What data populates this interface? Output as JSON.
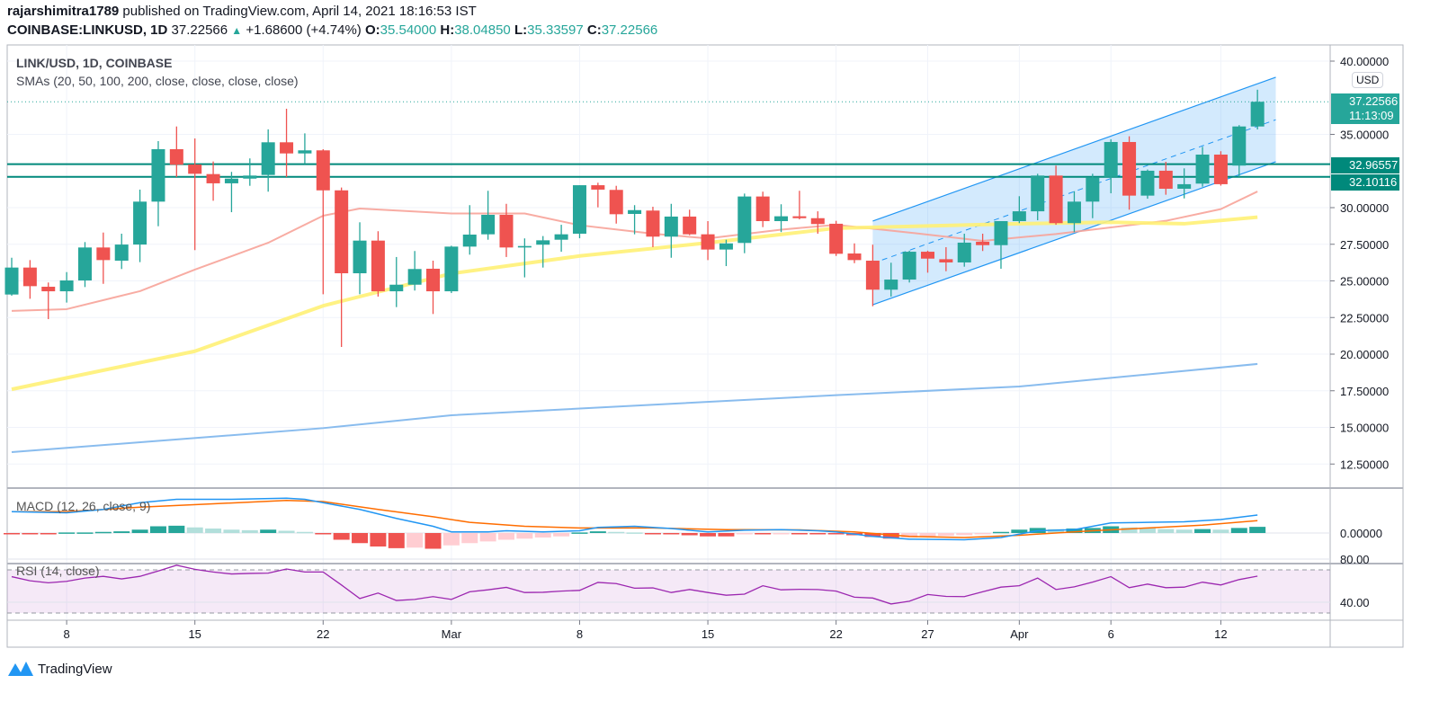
{
  "header": {
    "author": "rajarshimitra1789",
    "published": "published on TradingView.com, April 14, 2021 18:16:53 IST",
    "symbol": "COINBASE:LINKUSD, 1D",
    "last": "37.22566",
    "change": "+1.68600 (+4.74%)",
    "o_label": "O:",
    "o": "35.54000",
    "h_label": "H:",
    "h": "38.04850",
    "l_label": "L:",
    "l": "35.33597",
    "c_label": "C:",
    "c": "37.22566"
  },
  "legend": {
    "main": "LINK/USD, 1D, COINBASE",
    "sma": "SMAs (20, 50, 100, 200, close, close, close, close)",
    "macd": "MACD (12, 26, close, 9)",
    "rsi": "RSI (14, close)"
  },
  "badges": {
    "currency": "USD",
    "last_price": "37.22566",
    "countdown": "11:13:09",
    "level1": "32.96557",
    "level2": "32.10116"
  },
  "logo_text": "TradingView",
  "colors": {
    "up": "#26a69a",
    "down": "#ef5350",
    "sma20": "#f7a399",
    "sma50": "#fff176",
    "sma200": "#7cb5ec",
    "macd": "#2196f3",
    "signal": "#ff6d00",
    "rsi": "#9c27b0",
    "channel": "#2196f3",
    "level": "#00897b"
  },
  "chart_data": {
    "type": "candlestick",
    "title": "LINK/USD, 1D, COINBASE",
    "ylim": [
      10.5,
      40.5
    ],
    "y_ticks": [
      "40.00000",
      "35.00000",
      "30.00000",
      "27.50000",
      "25.00000",
      "22.50000",
      "20.00000",
      "17.50000",
      "15.00000",
      "12.50000"
    ],
    "y_tick_values": [
      40,
      35,
      30,
      27.5,
      25,
      22.5,
      20,
      17.5,
      15,
      12.5
    ],
    "x_ticks": [
      {
        "date": "2021-02-08",
        "label": "8"
      },
      {
        "date": "2021-02-15",
        "label": "15"
      },
      {
        "date": "2021-02-22",
        "label": "22"
      },
      {
        "date": "2021-03-01",
        "label": "Mar"
      },
      {
        "date": "2021-03-08",
        "label": "8"
      },
      {
        "date": "2021-03-15",
        "label": "15"
      },
      {
        "date": "2021-03-22",
        "label": "22"
      },
      {
        "date": "2021-03-27",
        "label": "27"
      },
      {
        "date": "2021-04-01",
        "label": "Apr"
      },
      {
        "date": "2021-04-06",
        "label": "6"
      },
      {
        "date": "2021-04-12",
        "label": "12"
      }
    ],
    "candles": [
      [
        "2021-02-05",
        24.07,
        26.58,
        23.99,
        25.91
      ],
      [
        "2021-02-06",
        25.91,
        26.42,
        23.78,
        24.64
      ],
      [
        "2021-02-07",
        24.6,
        24.89,
        22.39,
        24.29
      ],
      [
        "2021-02-08",
        24.29,
        25.6,
        23.52,
        25.03
      ],
      [
        "2021-02-09",
        25.03,
        27.65,
        24.58,
        27.28
      ],
      [
        "2021-02-10",
        27.28,
        28.3,
        24.8,
        26.42
      ],
      [
        "2021-02-11",
        26.38,
        28.22,
        25.81,
        27.48
      ],
      [
        "2021-02-12",
        27.48,
        31.23,
        26.28,
        30.41
      ],
      [
        "2021-02-13",
        30.41,
        34.54,
        28.73,
        33.99
      ],
      [
        "2021-02-14",
        33.99,
        35.54,
        32.09,
        32.93
      ],
      [
        "2021-02-15",
        32.94,
        34.72,
        27.1,
        32.31
      ],
      [
        "2021-02-16",
        32.29,
        33.15,
        30.47,
        31.66
      ],
      [
        "2021-02-17",
        31.66,
        32.44,
        29.69,
        31.98
      ],
      [
        "2021-02-18",
        31.98,
        33.36,
        31.49,
        32.19
      ],
      [
        "2021-02-19",
        32.23,
        35.34,
        31.09,
        34.46
      ],
      [
        "2021-02-20",
        34.46,
        36.75,
        32.09,
        33.7
      ],
      [
        "2021-02-21",
        33.7,
        35.07,
        32.99,
        33.91
      ],
      [
        "2021-02-22",
        33.91,
        33.99,
        24.09,
        31.18
      ],
      [
        "2021-02-23",
        31.18,
        31.37,
        20.49,
        25.52
      ],
      [
        "2021-02-24",
        25.52,
        29.0,
        24.09,
        27.75
      ],
      [
        "2021-02-25",
        27.75,
        28.39,
        23.93,
        24.29
      ],
      [
        "2021-02-26",
        24.29,
        26.63,
        23.21,
        24.74
      ],
      [
        "2021-02-27",
        24.74,
        27.04,
        24.34,
        25.81
      ],
      [
        "2021-02-28",
        25.83,
        26.38,
        22.74,
        24.29
      ],
      [
        "2021-03-01",
        24.29,
        27.4,
        24.17,
        27.34
      ],
      [
        "2021-03-02",
        27.34,
        30.17,
        26.79,
        28.16
      ],
      [
        "2021-03-03",
        28.18,
        31.15,
        27.81,
        29.51
      ],
      [
        "2021-03-04",
        29.51,
        30.26,
        26.63,
        27.28
      ],
      [
        "2021-03-05",
        27.28,
        27.9,
        25.24,
        27.38
      ],
      [
        "2021-03-06",
        27.47,
        28.06,
        25.91,
        27.77
      ],
      [
        "2021-03-07",
        27.81,
        28.83,
        26.99,
        28.18
      ],
      [
        "2021-03-08",
        28.22,
        31.53,
        27.91,
        31.53
      ],
      [
        "2021-03-09",
        31.53,
        31.7,
        30.02,
        31.23
      ],
      [
        "2021-03-10",
        31.21,
        31.49,
        28.91,
        29.55
      ],
      [
        "2021-03-11",
        29.57,
        30.17,
        28.18,
        29.83
      ],
      [
        "2021-03-12",
        29.8,
        30.06,
        27.3,
        28.02
      ],
      [
        "2021-03-13",
        28.02,
        30.26,
        26.58,
        29.39
      ],
      [
        "2021-03-14",
        29.39,
        29.86,
        28.12,
        28.18
      ],
      [
        "2021-03-15",
        28.18,
        29.08,
        26.42,
        27.14
      ],
      [
        "2021-03-16",
        27.14,
        27.81,
        26.01,
        27.56
      ],
      [
        "2021-03-17",
        27.59,
        30.96,
        26.89,
        30.76
      ],
      [
        "2021-03-18",
        30.76,
        31.09,
        28.67,
        29.08
      ],
      [
        "2021-03-19",
        29.08,
        30.23,
        28.33,
        29.41
      ],
      [
        "2021-03-20",
        29.41,
        31.15,
        29.2,
        29.28
      ],
      [
        "2021-03-21",
        29.28,
        29.75,
        28.22,
        28.88
      ],
      [
        "2021-03-22",
        28.9,
        29.1,
        26.7,
        26.85
      ],
      [
        "2021-03-23",
        26.87,
        27.56,
        26.21,
        26.42
      ],
      [
        "2021-03-24",
        26.38,
        27.47,
        23.27,
        24.4
      ],
      [
        "2021-03-25",
        24.4,
        26.24,
        23.93,
        25.09
      ],
      [
        "2021-03-26",
        25.09,
        27.06,
        24.89,
        26.99
      ],
      [
        "2021-03-27",
        26.99,
        27.06,
        25.56,
        26.52
      ],
      [
        "2021-03-28",
        26.48,
        27.3,
        25.66,
        26.26
      ],
      [
        "2021-03-29",
        26.26,
        28.22,
        25.97,
        27.61
      ],
      [
        "2021-03-30",
        27.67,
        28.22,
        27.04,
        27.44
      ],
      [
        "2021-03-31",
        27.44,
        29.08,
        25.83,
        29.08
      ],
      [
        "2021-04-01",
        29.08,
        30.78,
        28.94,
        29.75
      ],
      [
        "2021-04-02",
        29.75,
        32.31,
        29.14,
        32.19
      ],
      [
        "2021-04-03",
        32.19,
        32.87,
        28.83,
        28.94
      ],
      [
        "2021-04-04",
        28.94,
        31.12,
        28.33,
        30.41
      ],
      [
        "2021-04-05",
        30.41,
        32.31,
        29.28,
        32.07
      ],
      [
        "2021-04-06",
        32.1,
        34.66,
        30.98,
        34.48
      ],
      [
        "2021-04-07",
        34.48,
        34.87,
        29.86,
        30.82
      ],
      [
        "2021-04-08",
        30.82,
        32.6,
        30.61,
        32.52
      ],
      [
        "2021-04-09",
        32.52,
        33.13,
        30.88,
        31.29
      ],
      [
        "2021-04-10",
        31.29,
        32.68,
        30.63,
        31.6
      ],
      [
        "2021-04-11",
        31.64,
        34.15,
        31.43,
        33.62
      ],
      [
        "2021-04-12",
        33.62,
        33.85,
        31.5,
        31.6
      ],
      [
        "2021-04-13",
        32.87,
        35.63,
        32.1,
        35.54
      ],
      [
        "2021-04-14",
        35.54,
        38.0485,
        35.33597,
        37.22566
      ]
    ],
    "sma": [
      {
        "name": "SMA 20",
        "color_key": "sma20",
        "points": [
          [
            "2021-02-05",
            22.95
          ],
          [
            "2021-02-08",
            23.07
          ],
          [
            "2021-02-12",
            24.3
          ],
          [
            "2021-02-15",
            25.77
          ],
          [
            "2021-02-19",
            27.6
          ],
          [
            "2021-02-22",
            29.45
          ],
          [
            "2021-02-24",
            29.94
          ],
          [
            "2021-03-01",
            29.6
          ],
          [
            "2021-03-05",
            29.6
          ],
          [
            "2021-03-08",
            28.8
          ],
          [
            "2021-03-12",
            28.22
          ],
          [
            "2021-03-15",
            27.9
          ],
          [
            "2021-03-19",
            28.5
          ],
          [
            "2021-03-22",
            28.83
          ],
          [
            "2021-03-26",
            28.3
          ],
          [
            "2021-03-30",
            27.73
          ],
          [
            "2021-04-03",
            28.2
          ],
          [
            "2021-04-06",
            28.65
          ],
          [
            "2021-04-09",
            29.1
          ],
          [
            "2021-04-12",
            29.9
          ],
          [
            "2021-04-14",
            31.1
          ]
        ]
      },
      {
        "name": "SMA 50",
        "color_key": "sma50",
        "points": [
          [
            "2021-02-05",
            17.6
          ],
          [
            "2021-02-15",
            20.2
          ],
          [
            "2021-02-22",
            23.3
          ],
          [
            "2021-03-01",
            25.5
          ],
          [
            "2021-03-08",
            26.7
          ],
          [
            "2021-03-15",
            27.6
          ],
          [
            "2021-03-22",
            28.6
          ],
          [
            "2021-04-01",
            28.9
          ],
          [
            "2021-04-06",
            29.0
          ],
          [
            "2021-04-10",
            28.9
          ],
          [
            "2021-04-14",
            29.35
          ]
        ]
      },
      {
        "name": "SMA 200",
        "color_key": "sma200",
        "points": [
          [
            "2021-02-05",
            13.31
          ],
          [
            "2021-02-22",
            14.95
          ],
          [
            "2021-03-01",
            15.83
          ],
          [
            "2021-03-22",
            17.2
          ],
          [
            "2021-04-01",
            17.79
          ],
          [
            "2021-04-14",
            19.33
          ]
        ]
      }
    ],
    "horizontal_levels": [
      32.96557,
      32.10116
    ],
    "last_price": 37.22566,
    "channel": {
      "upper": [
        [
          "2021-03-24",
          29.08
        ],
        [
          "2021-04-15",
          38.9
        ]
      ],
      "lower": [
        [
          "2021-03-24",
          23.37
        ],
        [
          "2021-04-15",
          33.13
        ]
      ],
      "middle": [
        [
          "2021-03-24",
          26.2
        ],
        [
          "2021-04-15",
          36.0
        ]
      ]
    },
    "macd": {
      "zero_label": "0.00000",
      "macd_line": [
        [
          "2021-02-05",
          1.9
        ],
        [
          "2021-02-08",
          1.8
        ],
        [
          "2021-02-10",
          2.1
        ],
        [
          "2021-02-12",
          2.7
        ],
        [
          "2021-02-14",
          3.0
        ],
        [
          "2021-02-17",
          3.0
        ],
        [
          "2021-02-20",
          3.1
        ],
        [
          "2021-02-21",
          3.0
        ],
        [
          "2021-02-22",
          2.7
        ],
        [
          "2021-02-24",
          2.1
        ],
        [
          "2021-02-26",
          1.3
        ],
        [
          "2021-02-28",
          0.6
        ],
        [
          "2021-03-01",
          0.1
        ],
        [
          "2021-03-03",
          0.1
        ],
        [
          "2021-03-04",
          0.2
        ],
        [
          "2021-03-06",
          0.1
        ],
        [
          "2021-03-08",
          0.2
        ],
        [
          "2021-03-09",
          0.5
        ],
        [
          "2021-03-11",
          0.6
        ],
        [
          "2021-03-13",
          0.4
        ],
        [
          "2021-03-15",
          0.1
        ],
        [
          "2021-03-17",
          0.25
        ],
        [
          "2021-03-19",
          0.3
        ],
        [
          "2021-03-21",
          0.2
        ],
        [
          "2021-03-22",
          0.1
        ],
        [
          "2021-03-24",
          -0.3
        ],
        [
          "2021-03-26",
          -0.55
        ],
        [
          "2021-03-29",
          -0.6
        ],
        [
          "2021-03-31",
          -0.4
        ],
        [
          "2021-04-02",
          0.2
        ],
        [
          "2021-04-04",
          0.3
        ],
        [
          "2021-04-06",
          0.9
        ],
        [
          "2021-04-08",
          0.95
        ],
        [
          "2021-04-10",
          1.0
        ],
        [
          "2021-04-12",
          1.2
        ],
        [
          "2021-04-14",
          1.6
        ]
      ],
      "signal_line": [
        [
          "2021-02-05",
          1.9
        ],
        [
          "2021-02-08",
          1.9
        ],
        [
          "2021-02-12",
          2.3
        ],
        [
          "2021-02-16",
          2.6
        ],
        [
          "2021-02-20",
          2.9
        ],
        [
          "2021-02-22",
          2.8
        ],
        [
          "2021-02-25",
          2.1
        ],
        [
          "2021-02-28",
          1.45
        ],
        [
          "2021-03-02",
          0.95
        ],
        [
          "2021-03-05",
          0.6
        ],
        [
          "2021-03-08",
          0.45
        ],
        [
          "2021-03-12",
          0.45
        ],
        [
          "2021-03-16",
          0.3
        ],
        [
          "2021-03-20",
          0.28
        ],
        [
          "2021-03-23",
          0.1
        ],
        [
          "2021-03-26",
          -0.3
        ],
        [
          "2021-03-29",
          -0.4
        ],
        [
          "2021-04-01",
          -0.2
        ],
        [
          "2021-04-05",
          0.2
        ],
        [
          "2021-04-08",
          0.45
        ],
        [
          "2021-04-11",
          0.7
        ],
        [
          "2021-04-14",
          1.1
        ]
      ],
      "histogram": [
        -0.05,
        -0.1,
        -0.1,
        0.05,
        0.05,
        0.1,
        0.15,
        0.3,
        0.6,
        0.65,
        0.5,
        0.4,
        0.3,
        0.25,
        0.3,
        0.2,
        0.1,
        -0.1,
        -0.6,
        -0.9,
        -1.2,
        -1.35,
        -1.3,
        -1.4,
        -1.1,
        -0.9,
        -0.75,
        -0.6,
        -0.5,
        -0.4,
        -0.3,
        0.05,
        0.15,
        0.1,
        0.05,
        -0.05,
        -0.1,
        -0.2,
        -0.3,
        -0.3,
        -0.1,
        -0.1,
        -0.05,
        -0.05,
        -0.05,
        -0.1,
        -0.2,
        -0.35,
        -0.5,
        -0.4,
        -0.3,
        -0.25,
        -0.2,
        -0.1,
        0.1,
        0.3,
        0.45,
        0.35,
        0.4,
        0.45,
        0.6,
        0.5,
        0.45,
        0.35,
        0.3,
        0.35,
        0.3,
        0.45,
        0.55
      ]
    },
    "rsi": {
      "ticks": [
        "80.00",
        "40.00"
      ],
      "tick_values": [
        80,
        40
      ],
      "bands": [
        70,
        30
      ],
      "values": [
        63.7,
        59.9,
        58,
        59.4,
        62.4,
        64,
        61.6,
        64,
        69,
        74.3,
        70.5,
        68,
        66.2,
        66.7,
        67,
        70.8,
        68,
        68,
        56,
        43.4,
        48.5,
        41.6,
        42.6,
        45.2,
        42.6,
        49.7,
        51.5,
        53.8,
        49,
        49.2,
        50.3,
        51,
        58.4,
        57.3,
        53,
        53.3,
        49,
        51.8,
        49,
        46.5,
        47.5,
        55.3,
        51.5,
        52,
        51.8,
        50.3,
        44.7,
        43.9,
        38.4,
        40.9,
        47.2,
        45.4,
        45.2,
        49.7,
        54,
        55.3,
        62.4,
        51.8,
        54.3,
        58.6,
        63.7,
        53.5,
        56.8,
        53.5,
        54,
        58.6,
        56,
        61,
        64.2
      ]
    }
  }
}
